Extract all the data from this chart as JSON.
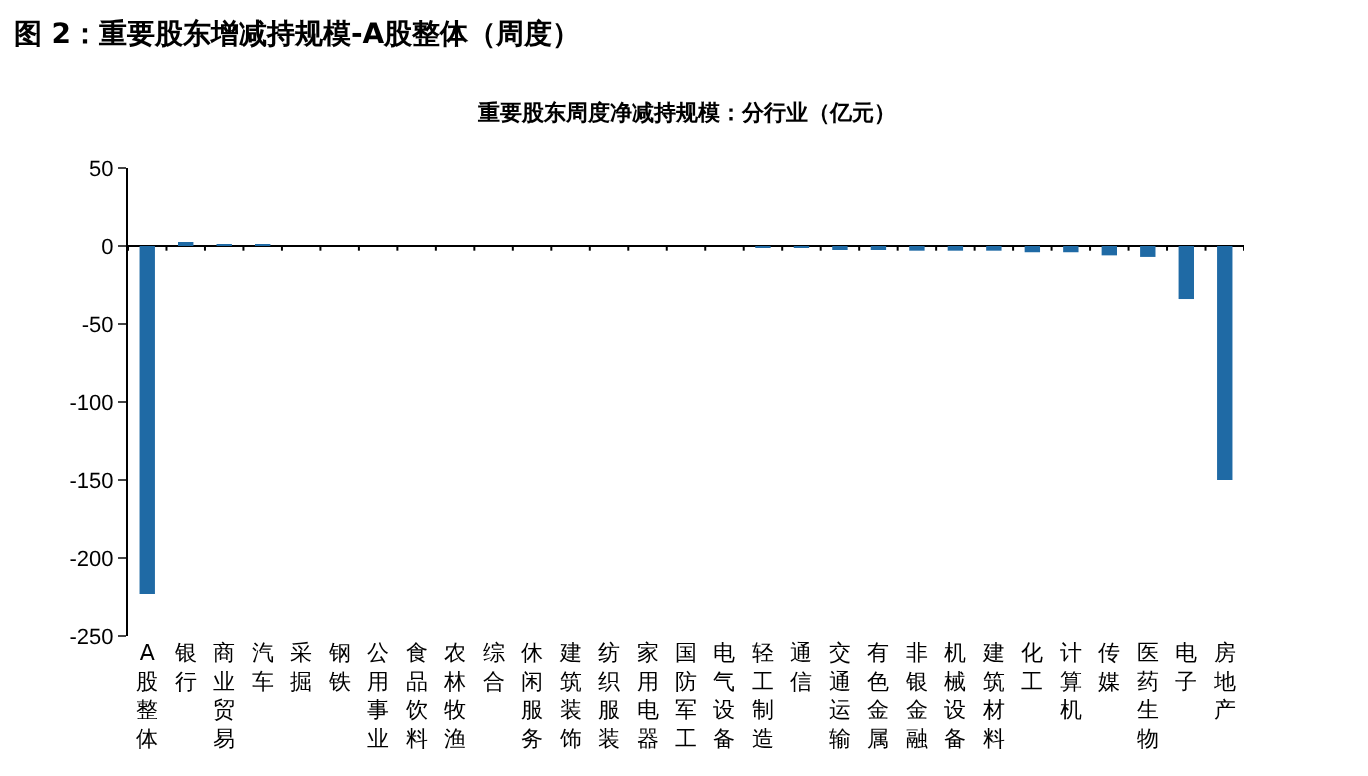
{
  "chart_data": {
    "type": "bar",
    "title": "图 2：重要股东增减持规模-A股整体（周度）",
    "subtitle": "重要股东周度净减持规模：分行业（亿元）",
    "categories": [
      "A股整体",
      "银行",
      "商业贸易",
      "汽车",
      "采掘",
      "钢铁",
      "公用事业",
      "食品饮料",
      "农林牧渔",
      "综合",
      "休闲服务",
      "建筑装饰",
      "纺织服装",
      "家用电器",
      "国防军工",
      "电气设备",
      "轻工制造",
      "通信",
      "交通运输",
      "有色金属",
      "非银金融",
      "机械设备",
      "建筑材料",
      "化工",
      "计算机",
      "传媒",
      "医药生物",
      "电子",
      "房地产"
    ],
    "values": [
      -223,
      2,
      1,
      1,
      0,
      0,
      0,
      0,
      0,
      0,
      0,
      0,
      0,
      0,
      0,
      0,
      -1,
      -1,
      -2,
      -2,
      -3,
      -3,
      -3,
      -4,
      -4,
      -6,
      -7,
      -34,
      -150
    ],
    "color": "#1f6aa5",
    "ylim": [
      -250,
      50
    ],
    "yticks": [
      -250,
      -200,
      -150,
      -100,
      -50,
      0,
      50
    ]
  }
}
